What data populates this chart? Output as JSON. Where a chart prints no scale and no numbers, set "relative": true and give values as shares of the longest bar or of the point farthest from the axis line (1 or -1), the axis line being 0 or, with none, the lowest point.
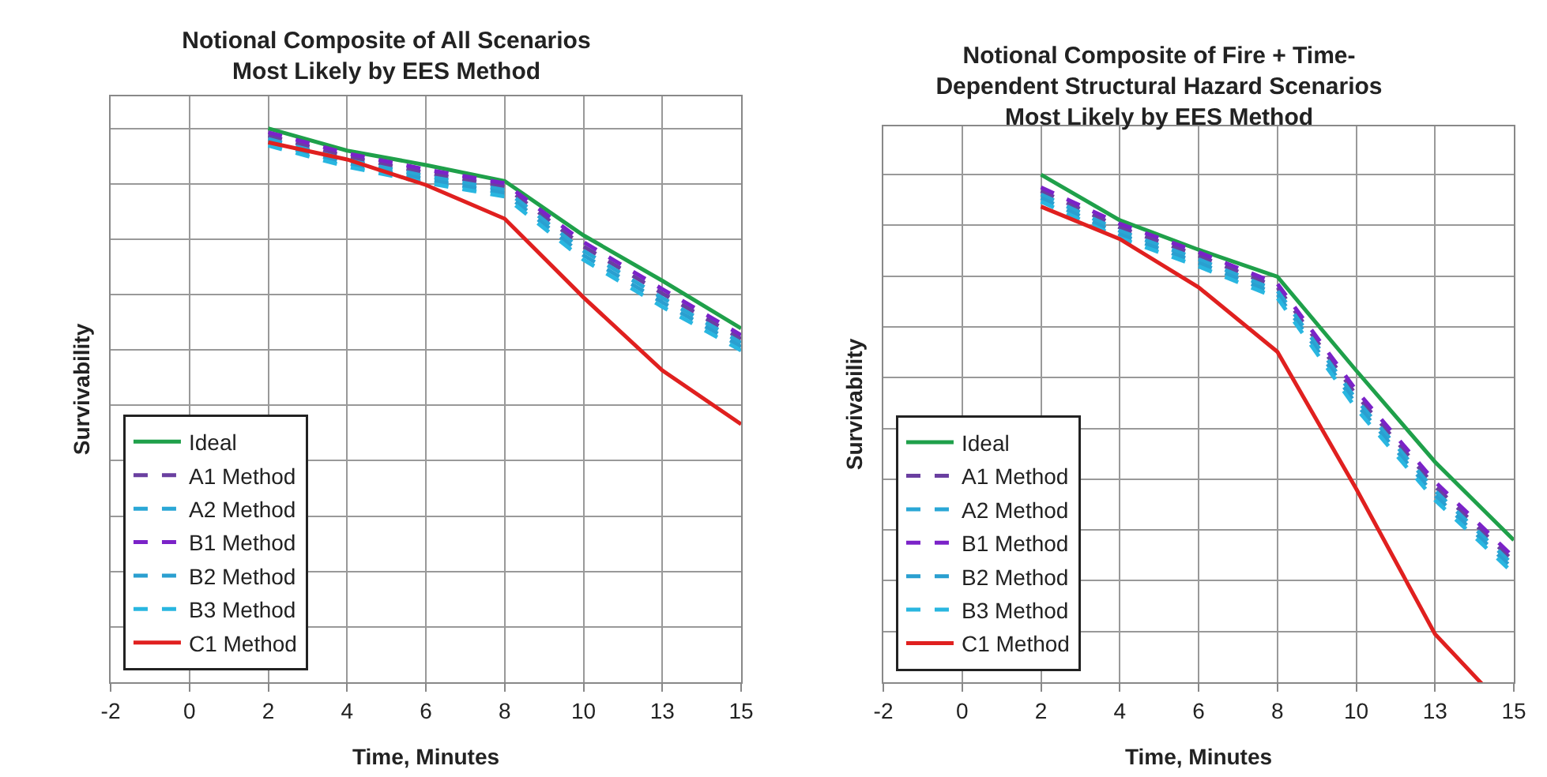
{
  "chart_data": [
    {
      "type": "line",
      "title": "Notional Composite of All Scenarios\nMost Likely by EES Method",
      "xlabel": "Time, Minutes",
      "ylabel": "Survivability",
      "relative": true,
      "grid": true,
      "legend": "bottom left",
      "categories": [
        "-2",
        "0",
        "2",
        "4",
        "6",
        "8",
        "10",
        "13",
        "15"
      ],
      "series": [
        {
          "name": "Ideal",
          "color": "#1fa04a",
          "line_style": "solid",
          "values": [
            null,
            null,
            1.0,
            0.96,
            0.934,
            0.905,
            0.807,
            0.725,
            0.639
          ]
        },
        {
          "name": "A1 Method",
          "color": "#6a3fa0",
          "line_style": "dashed",
          "values": [
            null,
            null,
            0.987,
            0.949,
            0.92,
            0.895,
            0.787,
            0.702,
            0.62
          ]
        },
        {
          "name": "A2 Method",
          "color": "#2aa7d6",
          "line_style": "dashed",
          "values": [
            null,
            null,
            0.981,
            0.943,
            0.914,
            0.889,
            0.779,
            0.694,
            0.613
          ]
        },
        {
          "name": "B1 Method",
          "color": "#7b22c8",
          "line_style": "dashed",
          "values": [
            null,
            null,
            0.993,
            0.955,
            0.926,
            0.901,
            0.795,
            0.71,
            0.627
          ]
        },
        {
          "name": "B2 Method",
          "color": "#2a9fd0",
          "line_style": "dashed",
          "values": [
            null,
            null,
            0.975,
            0.937,
            0.908,
            0.883,
            0.771,
            0.686,
            0.606
          ]
        },
        {
          "name": "B3 Method",
          "color": "#29b6e0",
          "line_style": "dashed",
          "values": [
            null,
            null,
            0.969,
            0.931,
            0.902,
            0.877,
            0.763,
            0.678,
            0.599
          ]
        },
        {
          "name": "C1 Method",
          "color": "#e0201f",
          "line_style": "solid",
          "values": [
            null,
            null,
            0.975,
            0.944,
            0.898,
            0.837,
            0.695,
            0.563,
            0.466
          ]
        }
      ]
    },
    {
      "type": "line",
      "title": "Notional Composite of Fire + Time-\nDependent Structural Hazard Scenarios\nMost Likely by EES Method",
      "xlabel": "Time, Minutes",
      "ylabel": "Survivability",
      "relative": true,
      "grid": true,
      "legend": "bottom left",
      "categories": [
        "-2",
        "0",
        "2",
        "4",
        "6",
        "8",
        "10",
        "13",
        "15"
      ],
      "series": [
        {
          "name": "Ideal",
          "color": "#1fa04a",
          "line_style": "solid",
          "values": [
            null,
            null,
            1.0,
            0.91,
            0.852,
            0.799,
            0.614,
            0.434,
            0.28
          ]
        },
        {
          "name": "A1 Method",
          "color": "#6a3fa0",
          "line_style": "dashed",
          "values": [
            null,
            null,
            0.968,
            0.896,
            0.84,
            0.778,
            0.566,
            0.386,
            0.238
          ]
        },
        {
          "name": "A2 Method",
          "color": "#2aa7d6",
          "line_style": "dashed",
          "values": [
            null,
            null,
            0.961,
            0.889,
            0.833,
            0.771,
            0.557,
            0.377,
            0.23
          ]
        },
        {
          "name": "B1 Method",
          "color": "#7b22c8",
          "line_style": "dashed",
          "values": [
            null,
            null,
            0.975,
            0.903,
            0.847,
            0.785,
            0.575,
            0.395,
            0.246
          ]
        },
        {
          "name": "B2 Method",
          "color": "#2a9fd0",
          "line_style": "dashed",
          "values": [
            null,
            null,
            0.954,
            0.882,
            0.826,
            0.764,
            0.548,
            0.368,
            0.222
          ]
        },
        {
          "name": "B3 Method",
          "color": "#29b6e0",
          "line_style": "dashed",
          "values": [
            null,
            null,
            0.947,
            0.875,
            0.819,
            0.757,
            0.539,
            0.359,
            0.214
          ]
        },
        {
          "name": "C1 Method",
          "color": "#e0201f",
          "line_style": "solid",
          "values": [
            null,
            null,
            0.937,
            0.873,
            0.778,
            0.651,
            0.381,
            0.095,
            -0.07
          ]
        }
      ]
    }
  ]
}
